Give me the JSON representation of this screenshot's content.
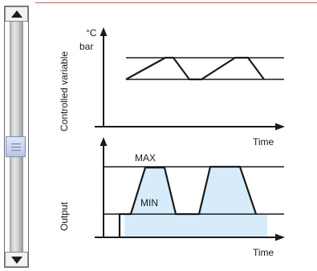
{
  "diagram": {
    "upper": {
      "y_axis_label": "Controlled variable",
      "unit_line1": "°C",
      "unit_line2": "bar",
      "x_axis_label": "Time"
    },
    "lower": {
      "y_axis_label": "Output",
      "max_label": "MAX",
      "min_label": "MIN",
      "x_axis_label": "Time"
    }
  },
  "colors": {
    "accent_line": "#d8585b",
    "fill": "#d6ecfa",
    "stroke": "#1a1a1a"
  },
  "icons": {
    "scroll_up": "triangle-up",
    "scroll_down": "triangle-down",
    "scroll_thumb": "grip-lines"
  }
}
